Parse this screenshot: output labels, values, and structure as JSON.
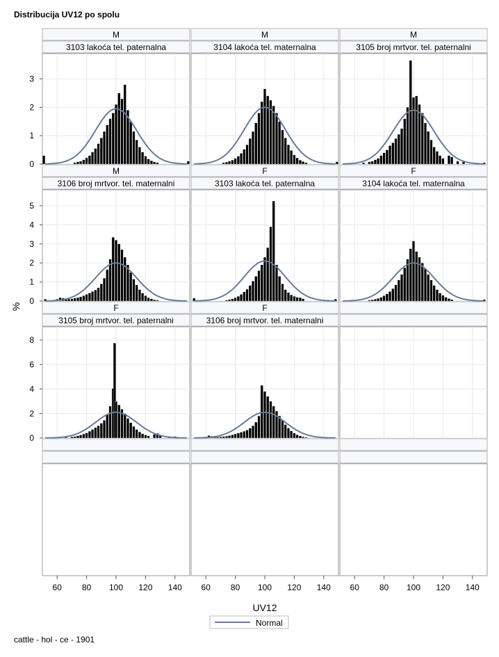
{
  "title": "Distribucija UV12 po spolu",
  "footnote": "cattle - hol - ce - 1901",
  "colors": {
    "bar": "#000000",
    "normal_curve": "#667b99",
    "header_bg": "#f7f8fb",
    "grid": "#e8e8e8",
    "border": "#b5b5b5"
  },
  "chart_data": {
    "type": "bar",
    "subtype": "histogram-panel-grid",
    "xlabel": "UV12",
    "ylabel": "%",
    "xticks": [
      60,
      80,
      100,
      120,
      140
    ],
    "xlim": [
      50,
      150
    ],
    "grid": true,
    "legend": {
      "placement": "bottom-center",
      "entries": [
        "Normal"
      ]
    },
    "rows": [
      {
        "yticks": [
          "0",
          "1",
          "2",
          "3"
        ],
        "ylim": [
          0,
          3.6
        ]
      },
      {
        "yticks": [
          "0",
          "1",
          "2",
          "3",
          "4",
          "5"
        ],
        "ylim": [
          0,
          5.4
        ]
      },
      {
        "yticks": [
          "0",
          "2",
          "4",
          "6",
          "8"
        ],
        "ylim": [
          0,
          8.4
        ]
      }
    ],
    "panels": [
      {
        "sex": "M",
        "label": "3103 lakoća tel. paternalna",
        "normal": {
          "mean": 100,
          "sd": 14,
          "peak": 1.95
        },
        "bins": [
          [
            51,
            0.3
          ],
          [
            72,
            0.05
          ],
          [
            74,
            0.08
          ],
          [
            76,
            0.1
          ],
          [
            78,
            0.15
          ],
          [
            80,
            0.22
          ],
          [
            82,
            0.3
          ],
          [
            84,
            0.42
          ],
          [
            86,
            0.55
          ],
          [
            88,
            0.72
          ],
          [
            90,
            0.92
          ],
          [
            92,
            1.15
          ],
          [
            94,
            1.38
          ],
          [
            96,
            1.6
          ],
          [
            98,
            1.8
          ],
          [
            100,
            2.1
          ],
          [
            102,
            2.5
          ],
          [
            104,
            2.3
          ],
          [
            106,
            2.8
          ],
          [
            108,
            1.9
          ],
          [
            110,
            1.5
          ],
          [
            112,
            1.15
          ],
          [
            114,
            0.85
          ],
          [
            116,
            0.6
          ],
          [
            118,
            0.42
          ],
          [
            120,
            0.28
          ],
          [
            122,
            0.18
          ],
          [
            124,
            0.12
          ],
          [
            126,
            0.08
          ],
          [
            128,
            0.05
          ],
          [
            149,
            0.1
          ]
        ]
      },
      {
        "sex": "M",
        "label": "3104 lakoća tel. maternalna",
        "normal": {
          "mean": 100,
          "sd": 14,
          "peak": 2.0
        },
        "bins": [
          [
            72,
            0.05
          ],
          [
            74,
            0.07
          ],
          [
            76,
            0.1
          ],
          [
            78,
            0.14
          ],
          [
            80,
            0.2
          ],
          [
            82,
            0.28
          ],
          [
            84,
            0.38
          ],
          [
            86,
            0.52
          ],
          [
            88,
            0.68
          ],
          [
            90,
            0.9
          ],
          [
            92,
            1.15
          ],
          [
            94,
            1.45
          ],
          [
            96,
            1.8
          ],
          [
            98,
            2.2
          ],
          [
            100,
            2.65
          ],
          [
            102,
            2.4
          ],
          [
            104,
            2.25
          ],
          [
            106,
            2.05
          ],
          [
            108,
            1.8
          ],
          [
            110,
            1.5
          ],
          [
            112,
            1.2
          ],
          [
            114,
            0.92
          ],
          [
            116,
            0.68
          ],
          [
            118,
            0.48
          ],
          [
            120,
            0.32
          ],
          [
            122,
            0.22
          ],
          [
            124,
            0.14
          ],
          [
            126,
            0.09
          ],
          [
            128,
            0.05
          ],
          [
            149,
            0.08
          ]
        ]
      },
      {
        "sex": "M",
        "label": "3105 broj mrtvor. tel. paternalni",
        "normal": {
          "mean": 100,
          "sd": 14,
          "peak": 1.9
        },
        "bins": [
          [
            66,
            0.05
          ],
          [
            70,
            0.08
          ],
          [
            72,
            0.1
          ],
          [
            74,
            0.15
          ],
          [
            76,
            0.2
          ],
          [
            78,
            0.3
          ],
          [
            80,
            0.4
          ],
          [
            82,
            0.5
          ],
          [
            84,
            0.65
          ],
          [
            86,
            0.75
          ],
          [
            88,
            0.9
          ],
          [
            90,
            1.05
          ],
          [
            92,
            1.25
          ],
          [
            94,
            1.6
          ],
          [
            96,
            2.0
          ],
          [
            98,
            3.65
          ],
          [
            100,
            2.35
          ],
          [
            102,
            2.4
          ],
          [
            104,
            2.1
          ],
          [
            106,
            1.8
          ],
          [
            108,
            1.45
          ],
          [
            110,
            1.15
          ],
          [
            112,
            0.85
          ],
          [
            114,
            0.6
          ],
          [
            116,
            0.45
          ],
          [
            118,
            0.3
          ],
          [
            120,
            0.2
          ],
          [
            124,
            0.3
          ],
          [
            126,
            0.25
          ],
          [
            130,
            0.1
          ],
          [
            134,
            0.08
          ],
          [
            148,
            0.05
          ]
        ]
      },
      {
        "sex": "M",
        "label": "3106 broj mrtvor. tel. maternalni",
        "normal": {
          "mean": 100,
          "sd": 14,
          "peak": 2.0
        },
        "bins": [
          [
            52,
            0.1
          ],
          [
            60,
            0.1
          ],
          [
            62,
            0.18
          ],
          [
            64,
            0.15
          ],
          [
            66,
            0.12
          ],
          [
            68,
            0.1
          ],
          [
            70,
            0.12
          ],
          [
            72,
            0.15
          ],
          [
            74,
            0.18
          ],
          [
            76,
            0.22
          ],
          [
            78,
            0.28
          ],
          [
            80,
            0.35
          ],
          [
            82,
            0.42
          ],
          [
            84,
            0.5
          ],
          [
            86,
            0.58
          ],
          [
            88,
            0.7
          ],
          [
            90,
            0.9
          ],
          [
            92,
            1.2
          ],
          [
            94,
            1.65
          ],
          [
            96,
            2.2
          ],
          [
            98,
            3.35
          ],
          [
            100,
            3.2
          ],
          [
            102,
            3.0
          ],
          [
            104,
            2.7
          ],
          [
            106,
            2.3
          ],
          [
            108,
            1.9
          ],
          [
            110,
            1.5
          ],
          [
            112,
            1.15
          ],
          [
            114,
            0.85
          ],
          [
            116,
            0.6
          ],
          [
            118,
            0.42
          ],
          [
            120,
            0.28
          ],
          [
            122,
            0.18
          ],
          [
            124,
            0.12
          ],
          [
            126,
            0.07
          ],
          [
            128,
            0.05
          ]
        ]
      },
      {
        "sex": "F",
        "label": "3103 lakoća tel. paternalna",
        "normal": {
          "mean": 100,
          "sd": 14,
          "peak": 2.1
        },
        "bins": [
          [
            52,
            0.15
          ],
          [
            74,
            0.05
          ],
          [
            76,
            0.08
          ],
          [
            78,
            0.12
          ],
          [
            80,
            0.18
          ],
          [
            82,
            0.25
          ],
          [
            84,
            0.35
          ],
          [
            86,
            0.48
          ],
          [
            88,
            0.62
          ],
          [
            90,
            0.82
          ],
          [
            92,
            1.05
          ],
          [
            94,
            1.3
          ],
          [
            96,
            1.6
          ],
          [
            98,
            1.9
          ],
          [
            100,
            2.3
          ],
          [
            102,
            2.8
          ],
          [
            104,
            3.9
          ],
          [
            106,
            5.25
          ],
          [
            108,
            1.9
          ],
          [
            110,
            1.3
          ],
          [
            112,
            0.9
          ],
          [
            114,
            0.6
          ],
          [
            116,
            0.45
          ],
          [
            118,
            0.32
          ],
          [
            120,
            0.25
          ],
          [
            122,
            0.2
          ],
          [
            124,
            0.18
          ],
          [
            126,
            0.12
          ],
          [
            148,
            0.1
          ]
        ]
      },
      {
        "sex": "F",
        "label": "3104 lakoća tel. maternalna",
        "normal": {
          "mean": 100,
          "sd": 14,
          "peak": 2.0
        },
        "bins": [
          [
            70,
            0.05
          ],
          [
            72,
            0.07
          ],
          [
            74,
            0.1
          ],
          [
            76,
            0.14
          ],
          [
            78,
            0.2
          ],
          [
            80,
            0.28
          ],
          [
            82,
            0.38
          ],
          [
            84,
            0.5
          ],
          [
            86,
            0.65
          ],
          [
            88,
            0.85
          ],
          [
            90,
            1.1
          ],
          [
            92,
            1.4
          ],
          [
            94,
            1.75
          ],
          [
            96,
            2.2
          ],
          [
            98,
            2.75
          ],
          [
            100,
            3.15
          ],
          [
            102,
            2.6
          ],
          [
            104,
            2.3
          ],
          [
            106,
            2.0
          ],
          [
            108,
            1.7
          ],
          [
            110,
            1.4
          ],
          [
            112,
            1.1
          ],
          [
            114,
            0.82
          ],
          [
            116,
            0.6
          ],
          [
            118,
            0.42
          ],
          [
            120,
            0.3
          ],
          [
            122,
            0.2
          ],
          [
            124,
            0.13
          ],
          [
            126,
            0.08
          ],
          [
            148,
            0.08
          ]
        ]
      },
      {
        "sex": "F",
        "label": "3105 broj mrtvor. tel. paternalni",
        "normal": {
          "mean": 100,
          "sd": 14,
          "peak": 2.1
        },
        "bins": [
          [
            66,
            0.08
          ],
          [
            70,
            0.1
          ],
          [
            72,
            0.12
          ],
          [
            74,
            0.18
          ],
          [
            76,
            0.25
          ],
          [
            78,
            0.32
          ],
          [
            80,
            0.42
          ],
          [
            82,
            0.55
          ],
          [
            84,
            0.7
          ],
          [
            86,
            0.85
          ],
          [
            88,
            1.0
          ],
          [
            90,
            1.2
          ],
          [
            92,
            1.45
          ],
          [
            94,
            1.9
          ],
          [
            96,
            2.6
          ],
          [
            98,
            4.05
          ],
          [
            99,
            7.75
          ],
          [
            100,
            3.0
          ],
          [
            102,
            2.7
          ],
          [
            104,
            2.35
          ],
          [
            106,
            2.0
          ],
          [
            108,
            1.6
          ],
          [
            110,
            1.25
          ],
          [
            112,
            0.95
          ],
          [
            114,
            0.7
          ],
          [
            116,
            0.5
          ],
          [
            118,
            0.35
          ],
          [
            120,
            0.25
          ],
          [
            122,
            0.18
          ],
          [
            126,
            0.3
          ],
          [
            128,
            0.38
          ],
          [
            130,
            0.2
          ],
          [
            136,
            0.08
          ],
          [
            140,
            0.12
          ]
        ]
      },
      {
        "sex": "F",
        "label": "3106 broj mrtvor. tel. maternalni",
        "normal": {
          "mean": 100,
          "sd": 14,
          "peak": 2.1
        },
        "bins": [
          [
            60,
            0.1
          ],
          [
            62,
            0.2
          ],
          [
            64,
            0.15
          ],
          [
            66,
            0.1
          ],
          [
            68,
            0.08
          ],
          [
            70,
            0.1
          ],
          [
            72,
            0.12
          ],
          [
            74,
            0.15
          ],
          [
            76,
            0.2
          ],
          [
            78,
            0.26
          ],
          [
            80,
            0.33
          ],
          [
            82,
            0.4
          ],
          [
            84,
            0.48
          ],
          [
            86,
            0.55
          ],
          [
            88,
            0.65
          ],
          [
            90,
            0.8
          ],
          [
            92,
            1.0
          ],
          [
            94,
            1.3
          ],
          [
            96,
            1.8
          ],
          [
            98,
            4.3
          ],
          [
            100,
            3.8
          ],
          [
            102,
            3.4
          ],
          [
            104,
            3.0
          ],
          [
            106,
            2.6
          ],
          [
            108,
            2.2
          ],
          [
            110,
            1.8
          ],
          [
            112,
            1.45
          ],
          [
            114,
            1.1
          ],
          [
            116,
            0.82
          ],
          [
            118,
            0.58
          ],
          [
            120,
            0.4
          ],
          [
            122,
            0.27
          ],
          [
            124,
            0.17
          ],
          [
            126,
            0.1
          ],
          [
            128,
            0.06
          ]
        ]
      }
    ]
  }
}
